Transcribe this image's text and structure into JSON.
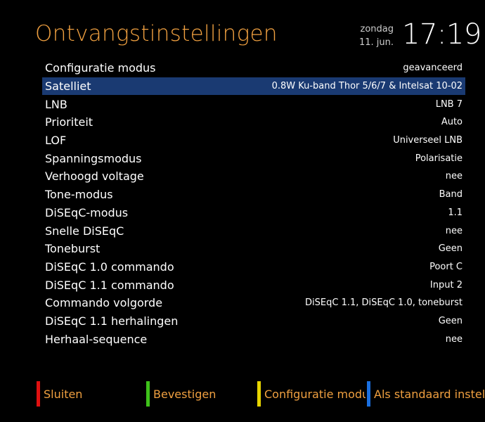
{
  "header": {
    "title": "Ontvangstinstellingen",
    "day": "zondag",
    "date": "11. jun.",
    "time": "17:19"
  },
  "settings": [
    {
      "label": "Configuratie modus",
      "value": "geavanceerd"
    },
    {
      "label": "Satelliet",
      "value": "0.8W Ku-band Thor 5/6/7 & Intelsat 10-02"
    },
    {
      "label": "LNB",
      "value": "LNB 7"
    },
    {
      "label": "Prioriteit",
      "value": "Auto"
    },
    {
      "label": "LOF",
      "value": "Universeel LNB"
    },
    {
      "label": "Spanningsmodus",
      "value": "Polarisatie"
    },
    {
      "label": "Verhoogd voltage",
      "value": "nee"
    },
    {
      "label": "Tone-modus",
      "value": "Band"
    },
    {
      "label": "DiSEqC-modus",
      "value": "1.1"
    },
    {
      "label": "Snelle DiSEqC",
      "value": "nee"
    },
    {
      "label": "Toneburst",
      "value": "Geen"
    },
    {
      "label": "DiSEqC 1.0 commando",
      "value": "Poort C"
    },
    {
      "label": "DiSEqC 1.1 commando",
      "value": "Input 2"
    },
    {
      "label": "Commando volgorde",
      "value": "DiSEqC 1.1, DiSEqC 1.0, toneburst"
    },
    {
      "label": "DiSEqC 1.1 herhalingen",
      "value": "Geen"
    },
    {
      "label": "Herhaal-sequence",
      "value": "nee"
    }
  ],
  "selected_index": 1,
  "buttons": {
    "red": {
      "label": "Sluiten",
      "color": "#e01010"
    },
    "green": {
      "label": "Bevestigen",
      "color": "#3ec21a"
    },
    "yellow": {
      "label": "Configuratie modus",
      "color": "#e6d400"
    },
    "blue": {
      "label": "Als standaard instellen",
      "color": "#1a6fe0"
    }
  },
  "colors": {
    "title": "#f0a040",
    "selection": "#1a3a72",
    "button_text": "#f0a040"
  }
}
